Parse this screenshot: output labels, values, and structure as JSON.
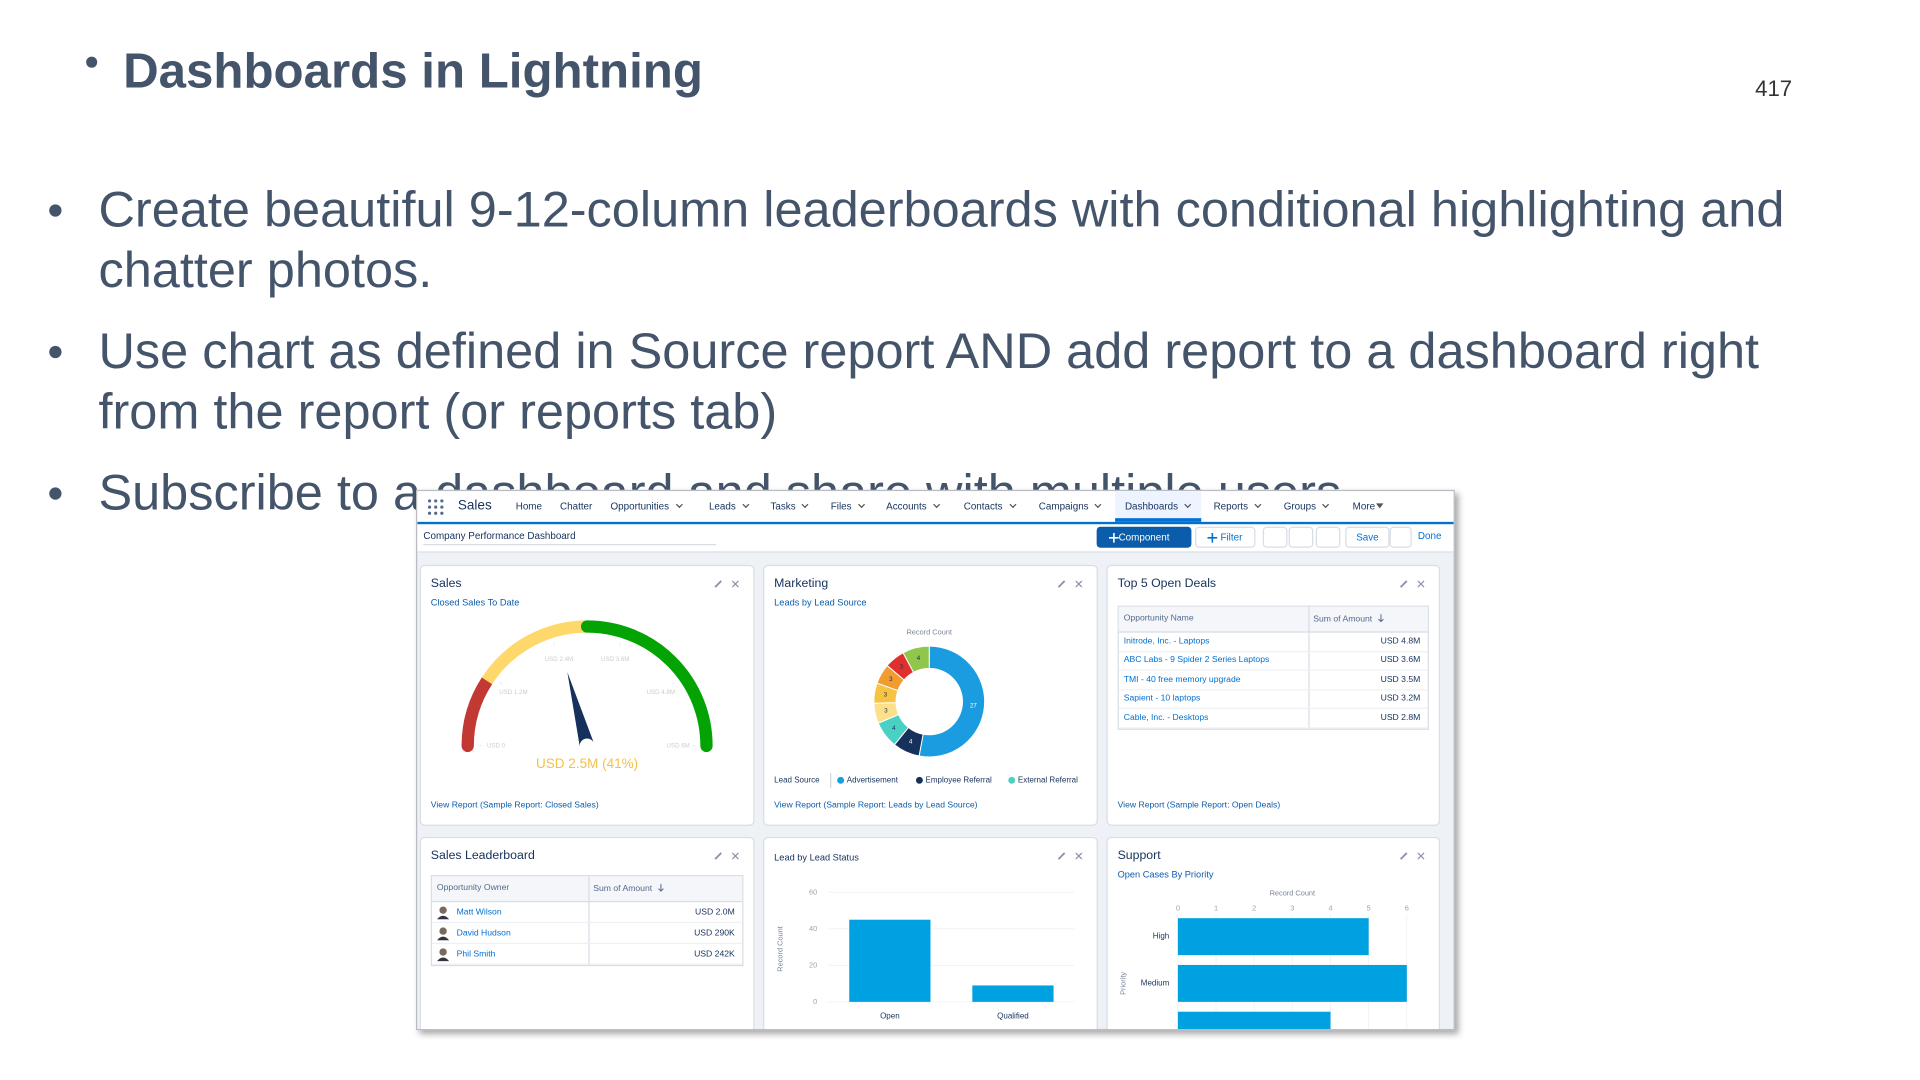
{
  "slide": {
    "title": "Dashboards in Lightning",
    "page_number": "417",
    "bullets": [
      "Create beautiful 9-12-column leaderboards with conditional highlighting and chatter photos.",
      "Use chart as defined in Source report AND add report to a dashboard right from the report (or reports tab)",
      "Subscribe to a dashboard and share with multiple users."
    ]
  },
  "screenshot": {
    "app_name": "Sales",
    "nav_items": [
      {
        "label": "Home"
      },
      {
        "label": "Chatter"
      },
      {
        "label": "Opportunities"
      },
      {
        "label": "Leads"
      },
      {
        "label": "Tasks"
      },
      {
        "label": "Files"
      },
      {
        "label": "Accounts"
      },
      {
        "label": "Contacts"
      },
      {
        "label": "Campaigns"
      },
      {
        "label": "Dashboards",
        "active": true
      },
      {
        "label": "Reports"
      },
      {
        "label": "Groups"
      },
      {
        "label": "More"
      }
    ],
    "dashboard_name": "Company Performance Dashboard",
    "buttons": {
      "component": "Component",
      "filter": "Filter",
      "save": "Save",
      "done": "Done"
    },
    "sales": {
      "type": "gauge",
      "title": "Sales",
      "subtitle": "Closed Sales To Date",
      "range": [
        0,
        6
      ],
      "ticks": [
        {
          "value": 0,
          "label": "USD 0"
        },
        {
          "value": 1.2,
          "label": "USD 1.2M"
        },
        {
          "value": 2.4,
          "label": "USD 2.4M"
        },
        {
          "value": 3.6,
          "label": "USD 3.6M"
        },
        {
          "value": 4.8,
          "label": "USD 4.8M"
        },
        {
          "value": 6,
          "label": "USD 6M"
        }
      ],
      "bands": [
        {
          "to": 1.1,
          "color": "#c23934"
        },
        {
          "to": 3,
          "color": "#ffd86c"
        },
        {
          "to": 6,
          "color": "#04a304"
        }
      ],
      "value": 2.5,
      "value_label": "USD 2.5M (41%)",
      "footer": "View Report (Sample Report: Closed Sales)"
    },
    "marketing": {
      "type": "donut",
      "title": "Marketing",
      "subtitle": "Leads by Lead Source",
      "axis_label": "Record Count",
      "segments": [
        {
          "value": 27,
          "color": "#1b9be0"
        },
        {
          "value": 4,
          "color": "#16325c"
        },
        {
          "value": 4,
          "color": "#4bd0c4"
        },
        {
          "value": 3,
          "color": "#fce08a"
        },
        {
          "value": 3,
          "color": "#f6c343"
        },
        {
          "value": 3,
          "color": "#f29b2f"
        },
        {
          "value": 3,
          "color": "#e0302d"
        },
        {
          "value": 4,
          "color": "#8fc64b"
        }
      ],
      "legend_title": "Lead Source",
      "legend": [
        {
          "name": "Advertisement",
          "color": "#1b9be0"
        },
        {
          "name": "Employee Referral",
          "color": "#16325c"
        },
        {
          "name": "External Referral",
          "color": "#4bd0c4"
        }
      ],
      "footer": "View Report (Sample Report: Leads by Lead Source)"
    },
    "deals": {
      "type": "table",
      "title": "Top 5 Open Deals",
      "columns": [
        "Opportunity Name",
        "Sum of Amount"
      ],
      "rows": [
        [
          "Initrode, Inc. - Laptops",
          "USD 4.8M"
        ],
        [
          "ABC Labs - 9 Spider 2 Series Laptops",
          "USD 3.6M"
        ],
        [
          "TMI - 40 free memory upgrade",
          "USD 3.5M"
        ],
        [
          "Sapient - 10 laptops",
          "USD 3.2M"
        ],
        [
          "Cable, Inc. - Desktops",
          "USD 2.8M"
        ]
      ],
      "footer": "View Report (Sample Report: Open Deals)"
    },
    "leaderboard": {
      "type": "table",
      "title": "Sales Leaderboard",
      "columns": [
        "Opportunity Owner",
        "Sum of Amount"
      ],
      "rows": [
        [
          "Matt Wilson",
          "USD 2.0M"
        ],
        [
          "David Hudson",
          "USD 290K"
        ],
        [
          "Phil Smith",
          "USD 242K"
        ]
      ]
    },
    "lead_status": {
      "type": "bar",
      "title": "Lead by Lead Status",
      "y_label": "Record Count",
      "categories": [
        "Open",
        "Qualified"
      ],
      "values": [
        45,
        9
      ],
      "color": "#00a1e0",
      "ylim": [
        0,
        60
      ],
      "yticks": [
        0,
        20,
        40,
        60
      ],
      "grid": true
    },
    "support": {
      "type": "hbar",
      "title": "Support",
      "subtitle": "Open Cases By Priority",
      "x_label": "Record Count",
      "y_label": "Priority",
      "categories": [
        "High",
        "Medium",
        null
      ],
      "values": [
        5,
        6,
        4
      ],
      "color": "#00a1e0",
      "xlim": [
        0,
        6
      ],
      "xticks": [
        0,
        1,
        2,
        3,
        4,
        5,
        6
      ],
      "grid": true
    }
  }
}
